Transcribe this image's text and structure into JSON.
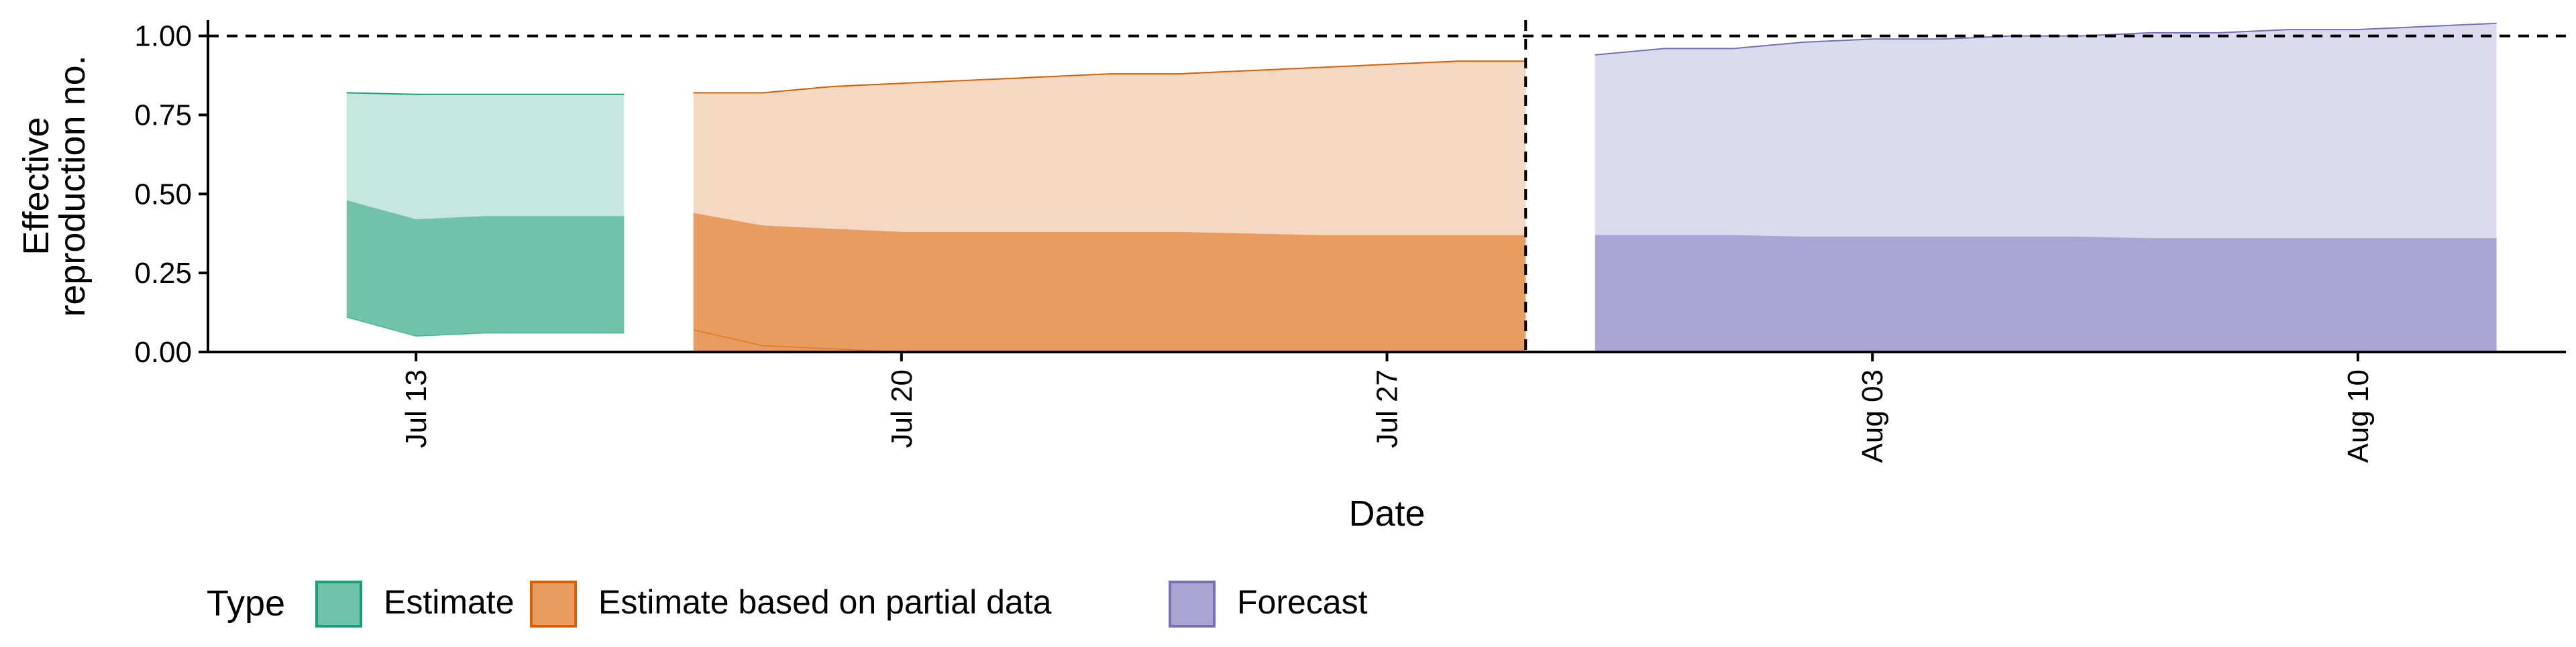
{
  "chart_data": {
    "type": "area",
    "xlabel": "Date",
    "ylabel": [
      "Effective",
      "reproduction no."
    ],
    "ylim": [
      0,
      1.05
    ],
    "y_ticks": [
      0.0,
      0.25,
      0.5,
      0.75,
      1.0
    ],
    "y_tick_labels": [
      "0.00",
      "0.25",
      "0.50",
      "0.75",
      "1.00"
    ],
    "x_ticks": [
      "2020-07-13",
      "2020-07-20",
      "2020-07-27",
      "2020-08-03",
      "2020-08-10"
    ],
    "x_tick_labels": [
      "Jul 13",
      "Jul 20",
      "Jul 27",
      "Aug 03",
      "Aug 10"
    ],
    "xlim": [
      "2020-07-10",
      "2020-08-13"
    ],
    "reference_line_y": 1.0,
    "reference_line_x": "2020-07-29",
    "grid": false,
    "legend": {
      "title": "Type",
      "position": "bottom-left",
      "entries": [
        "Estimate",
        "Estimate based on partial data",
        "Forecast"
      ]
    },
    "series": [
      {
        "name": "Estimate",
        "color": "#1b9e77",
        "inner_color": "#70c2a9",
        "outer_color": "#c5e7dd",
        "x": [
          "2020-07-12",
          "2020-07-13",
          "2020-07-14",
          "2020-07-15",
          "2020-07-16"
        ],
        "outer_lower": [
          0.11,
          0.05,
          0.06,
          0.06,
          0.06
        ],
        "outer_upper": [
          0.82,
          0.815,
          0.815,
          0.815,
          0.815
        ],
        "inner_lower": [
          0.11,
          0.05,
          0.06,
          0.06,
          0.06
        ],
        "inner_upper": [
          0.48,
          0.42,
          0.43,
          0.43,
          0.43
        ]
      },
      {
        "name": "Estimate based on partial data",
        "color": "#d95f02",
        "inner_color": "#e89c5f",
        "outer_color": "#f5d8c1",
        "x": [
          "2020-07-17",
          "2020-07-18",
          "2020-07-19",
          "2020-07-20",
          "2020-07-21",
          "2020-07-22",
          "2020-07-23",
          "2020-07-24",
          "2020-07-25",
          "2020-07-26",
          "2020-07-27",
          "2020-07-28",
          "2020-07-29"
        ],
        "outer_lower": [
          0.07,
          0.02,
          0.01,
          0.0,
          0.0,
          0.0,
          0.0,
          0.0,
          0.0,
          0.0,
          0.0,
          0.0,
          0.0
        ],
        "outer_upper": [
          0.82,
          0.82,
          0.84,
          0.85,
          0.86,
          0.87,
          0.88,
          0.88,
          0.89,
          0.9,
          0.91,
          0.92,
          0.92
        ],
        "inner_lower": [
          0.0,
          0.0,
          0.0,
          0.0,
          0.0,
          0.0,
          0.0,
          0.0,
          0.0,
          0.0,
          0.0,
          0.0,
          0.0
        ],
        "inner_upper": [
          0.44,
          0.4,
          0.39,
          0.38,
          0.38,
          0.38,
          0.38,
          0.38,
          0.375,
          0.37,
          0.37,
          0.37,
          0.37
        ]
      },
      {
        "name": "Forecast",
        "color": "#7570b3",
        "inner_color": "#a8a5d2",
        "outer_color": "#dcdbee",
        "x": [
          "2020-07-30",
          "2020-07-31",
          "2020-08-01",
          "2020-08-02",
          "2020-08-03",
          "2020-08-04",
          "2020-08-05",
          "2020-08-06",
          "2020-08-07",
          "2020-08-08",
          "2020-08-09",
          "2020-08-10",
          "2020-08-11",
          "2020-08-12"
        ],
        "outer_lower": [
          0.0,
          0.0,
          0.0,
          0.0,
          0.0,
          0.0,
          0.0,
          0.0,
          0.0,
          0.0,
          0.0,
          0.0,
          0.0,
          0.0
        ],
        "outer_upper": [
          0.94,
          0.96,
          0.96,
          0.98,
          0.99,
          0.99,
          1.0,
          1.0,
          1.01,
          1.01,
          1.02,
          1.02,
          1.03,
          1.04
        ],
        "inner_lower": [
          0.0,
          0.0,
          0.0,
          0.0,
          0.0,
          0.0,
          0.0,
          0.0,
          0.0,
          0.0,
          0.0,
          0.0,
          0.0,
          0.0
        ],
        "inner_upper": [
          0.37,
          0.37,
          0.37,
          0.365,
          0.365,
          0.365,
          0.365,
          0.365,
          0.36,
          0.36,
          0.36,
          0.36,
          0.36,
          0.36
        ]
      }
    ]
  }
}
